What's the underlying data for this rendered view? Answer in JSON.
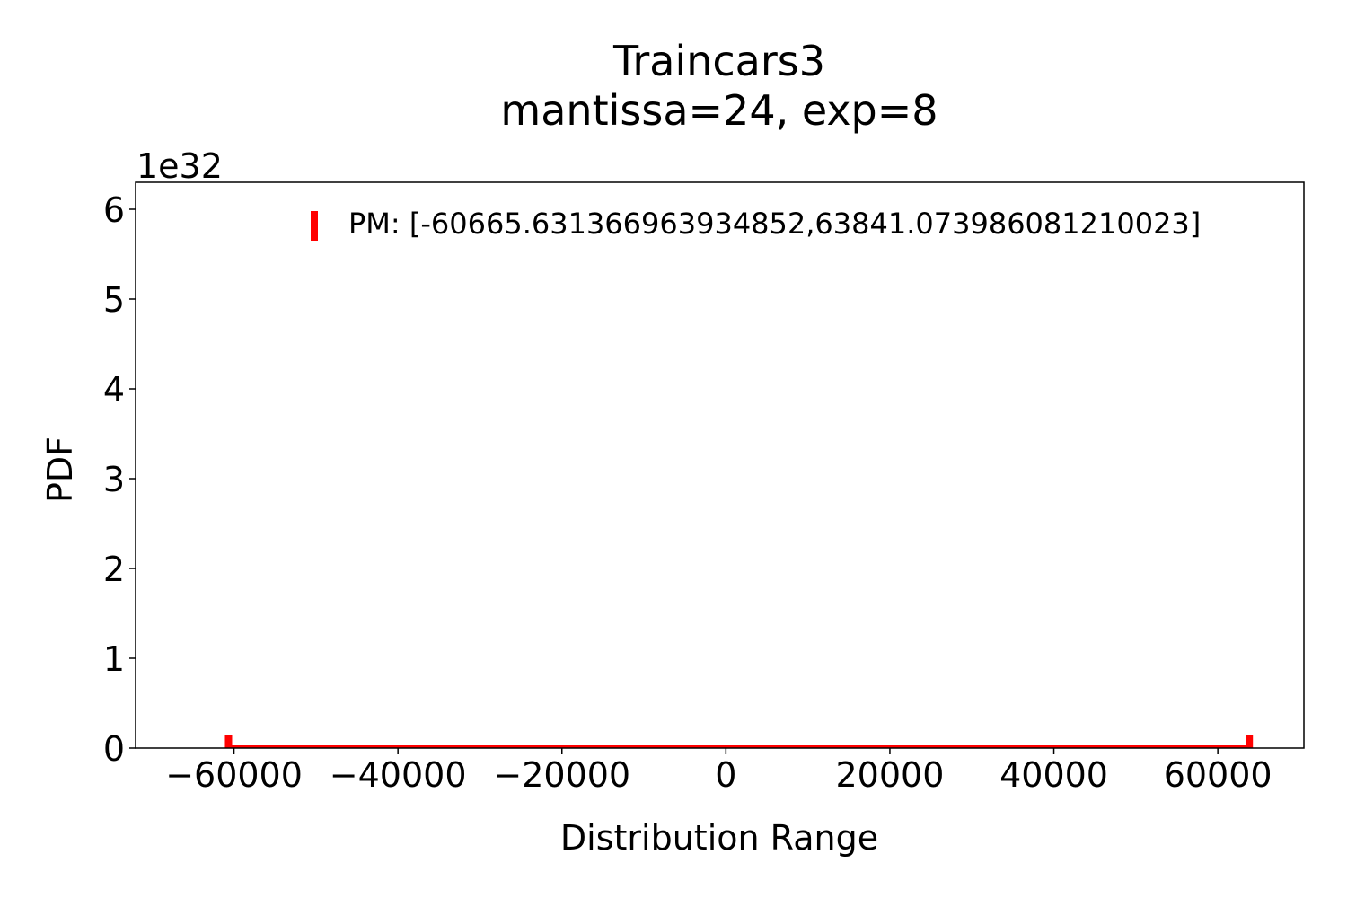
{
  "chart_data": {
    "type": "bar",
    "title": "Traincars3",
    "subtitle": "mantissa=24, exp=8",
    "xlabel": "Distribution Range",
    "ylabel": "PDF",
    "y_offset_label": "1e32",
    "y_scale": 1e+32,
    "xlim": [
      -72000,
      70500
    ],
    "ylim": [
      0,
      6.3
    ],
    "x_ticks": [
      -60000,
      -40000,
      -20000,
      0,
      20000,
      40000,
      60000
    ],
    "x_tick_labels": [
      "−60000",
      "−40000",
      "−20000",
      "0",
      "20000",
      "40000",
      "60000"
    ],
    "y_ticks": [
      0,
      1,
      2,
      3,
      4,
      5,
      6
    ],
    "y_tick_labels": [
      "0",
      "1",
      "2",
      "3",
      "4",
      "5",
      "6"
    ],
    "grid": false,
    "legend_position": "top-right",
    "series": [
      {
        "name": "PM: [-60665.631366963934852,63841.073986081210023]",
        "color": "#ff0000",
        "range": [
          -60665.631366963935,
          63841.07398608121
        ],
        "bars": [
          {
            "x": -60665.63,
            "value": 0.15
          },
          {
            "x": -60000,
            "value": 0.03
          },
          {
            "x": 0,
            "value": 0.03
          },
          {
            "x": 63000,
            "value": 0.03
          },
          {
            "x": 63841.07,
            "value": 0.15
          }
        ]
      }
    ]
  }
}
